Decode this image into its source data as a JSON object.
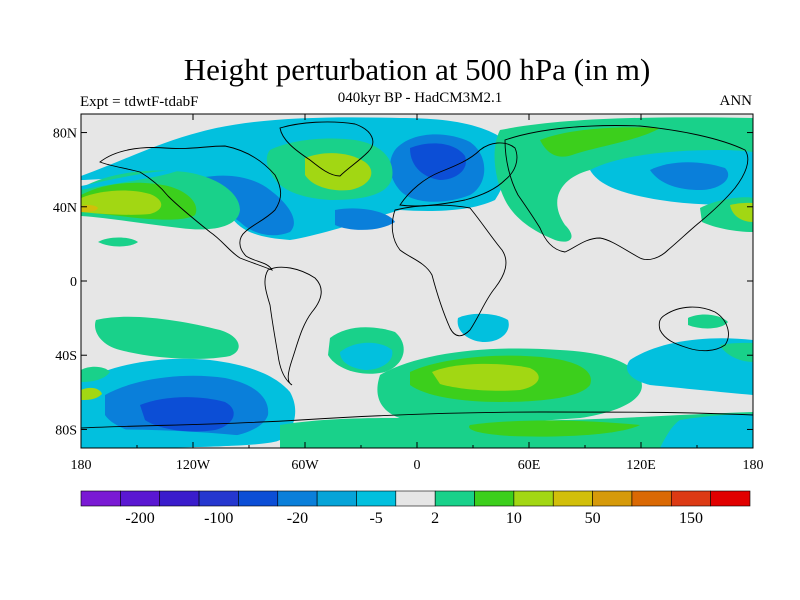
{
  "title": "Height perturbation at 500 hPa (in m)",
  "subtitle": "040kyr BP - HadCM3M2.1",
  "left_label": "Expt = tdwtF-tdabF",
  "right_label": "ANN",
  "map": {
    "projection": "cylindrical equidistant",
    "lon_range": [
      -180,
      180
    ],
    "lat_range": [
      -90,
      90
    ],
    "background_color": "#e6e6e6",
    "lat_ticks": [
      {
        "value": 80,
        "label": "80N"
      },
      {
        "value": 40,
        "label": "40N"
      },
      {
        "value": 0,
        "label": "0"
      },
      {
        "value": -40,
        "label": "40S"
      },
      {
        "value": -80,
        "label": "80S"
      }
    ],
    "lon_ticks": [
      {
        "value": -180,
        "label": "180"
      },
      {
        "value": -120,
        "label": "120W"
      },
      {
        "value": -60,
        "label": "60W"
      },
      {
        "value": 0,
        "label": "0"
      },
      {
        "value": 60,
        "label": "60E"
      },
      {
        "value": 120,
        "label": "120E"
      },
      {
        "value": 180,
        "label": "180"
      }
    ]
  },
  "colorbar": {
    "colors": [
      "#7a1ad4",
      "#5a17d2",
      "#3a1ccc",
      "#2537cf",
      "#0c4ed6",
      "#0a7fda",
      "#06a4d8",
      "#02c0de",
      "#e6e6e6",
      "#19d18a",
      "#3ccf1c",
      "#a2d713",
      "#d2bf0a",
      "#d69a0a",
      "#da6904",
      "#dc3a14",
      "#e10000"
    ],
    "labels": [
      "-200",
      "-100",
      "-20",
      "-5",
      "2",
      "10",
      "50",
      "150"
    ]
  },
  "chart_data": {
    "type": "heatmap",
    "title": "Height perturbation at 500 hPa (in m)",
    "subtitle": "040kyr BP - HadCM3M2.1",
    "x_range": [
      -180,
      180
    ],
    "y_range": [
      -90,
      90
    ],
    "contour_levels": [
      -200,
      -100,
      -20,
      -5,
      2,
      10,
      50,
      150
    ],
    "fields": [
      {
        "lon": -105,
        "lat": 32,
        "level": "2 to 10"
      },
      {
        "lon": -148,
        "lat": 40,
        "level": "10 to 50"
      },
      {
        "lon": -42,
        "lat": 58,
        "level": "10 to 50"
      },
      {
        "lon": -62,
        "lat": 45,
        "level": "-20 to -5"
      },
      {
        "lon": 3,
        "lat": 62,
        "level": "-20 to -5"
      },
      {
        "lon": 75,
        "lat": 65,
        "level": "2 to 10"
      },
      {
        "lon": 130,
        "lat": 50,
        "level": "-5 to 2"
      },
      {
        "lon": 170,
        "lat": 38,
        "level": "10 to 50"
      },
      {
        "lon": -130,
        "lat": -58,
        "level": "-20 to -5"
      },
      {
        "lon": 43,
        "lat": -48,
        "level": "10 to 50"
      },
      {
        "lon": 150,
        "lat": -47,
        "level": "-5 to 2"
      },
      {
        "lon": 150,
        "lat": -80,
        "level": "-5 to 2"
      }
    ]
  }
}
